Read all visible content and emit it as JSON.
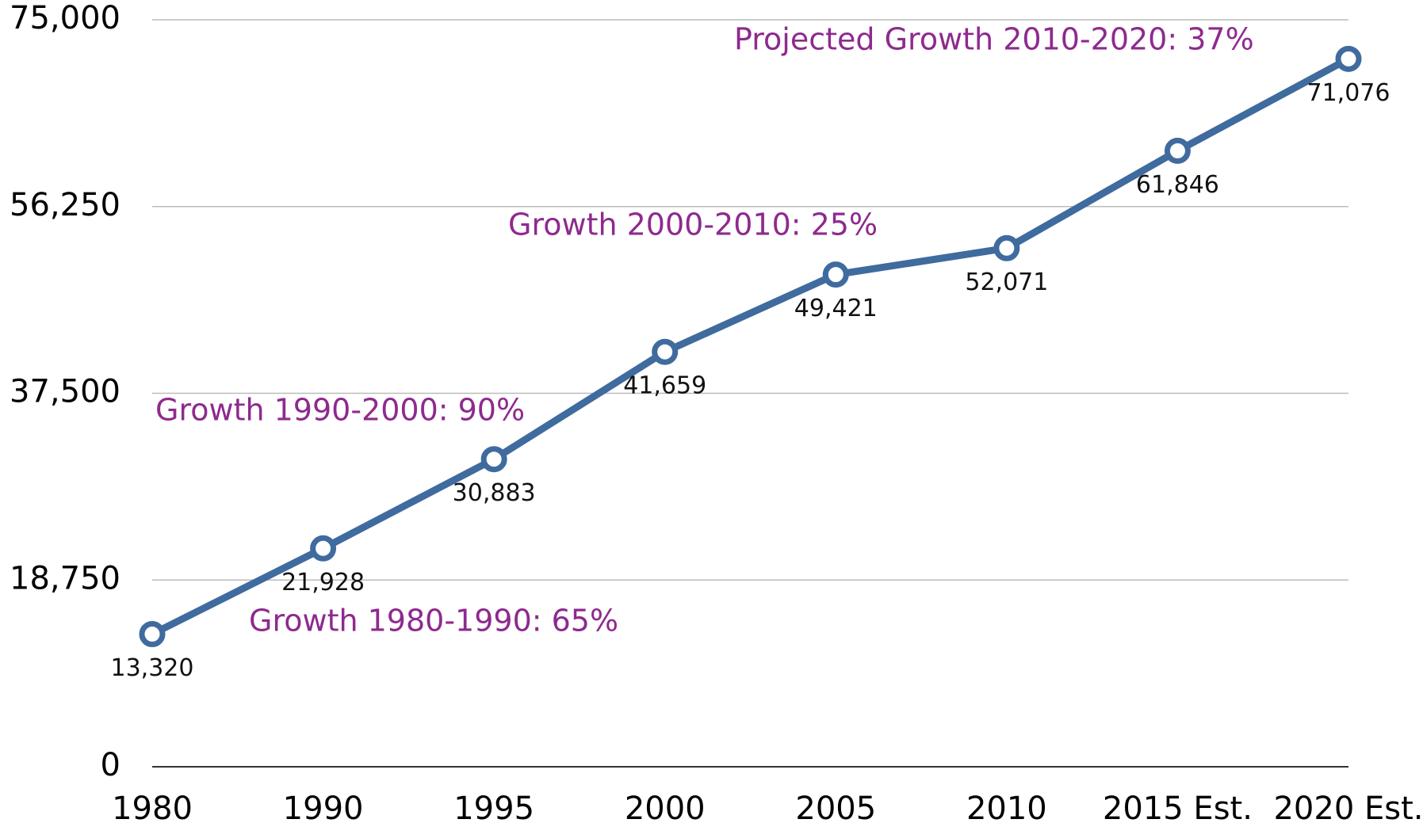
{
  "chart_data": {
    "type": "line",
    "categories": [
      "1980",
      "1990",
      "1995",
      "2000",
      "2005",
      "2010",
      "2015 Est.",
      "2020 Est."
    ],
    "series": [
      {
        "name": null,
        "color": "#3f6b9e",
        "values": [
          13320,
          21928,
          30883,
          41659,
          49421,
          52071,
          61846,
          71076
        ],
        "value_labels": [
          "13,320",
          "21,928",
          "30,883",
          "41,659",
          "49,421",
          "52,071",
          "61,846",
          "71,076"
        ]
      }
    ],
    "ylim": [
      0,
      75000
    ],
    "yticks": [
      0,
      {
        "value": 18750,
        "label": "18,750"
      },
      {
        "value": 37500,
        "label": "37,500"
      },
      {
        "value": 56250,
        "label": "56,250"
      },
      {
        "value": 75000,
        "label": "75,000"
      }
    ],
    "grid": true,
    "annotations": [
      "Projected Growth 2010-2020:  37%",
      "Growth 2000-2010:  25%",
      "Growth 1990-2000:  90%",
      "Growth 1980-1990:  65%"
    ]
  }
}
